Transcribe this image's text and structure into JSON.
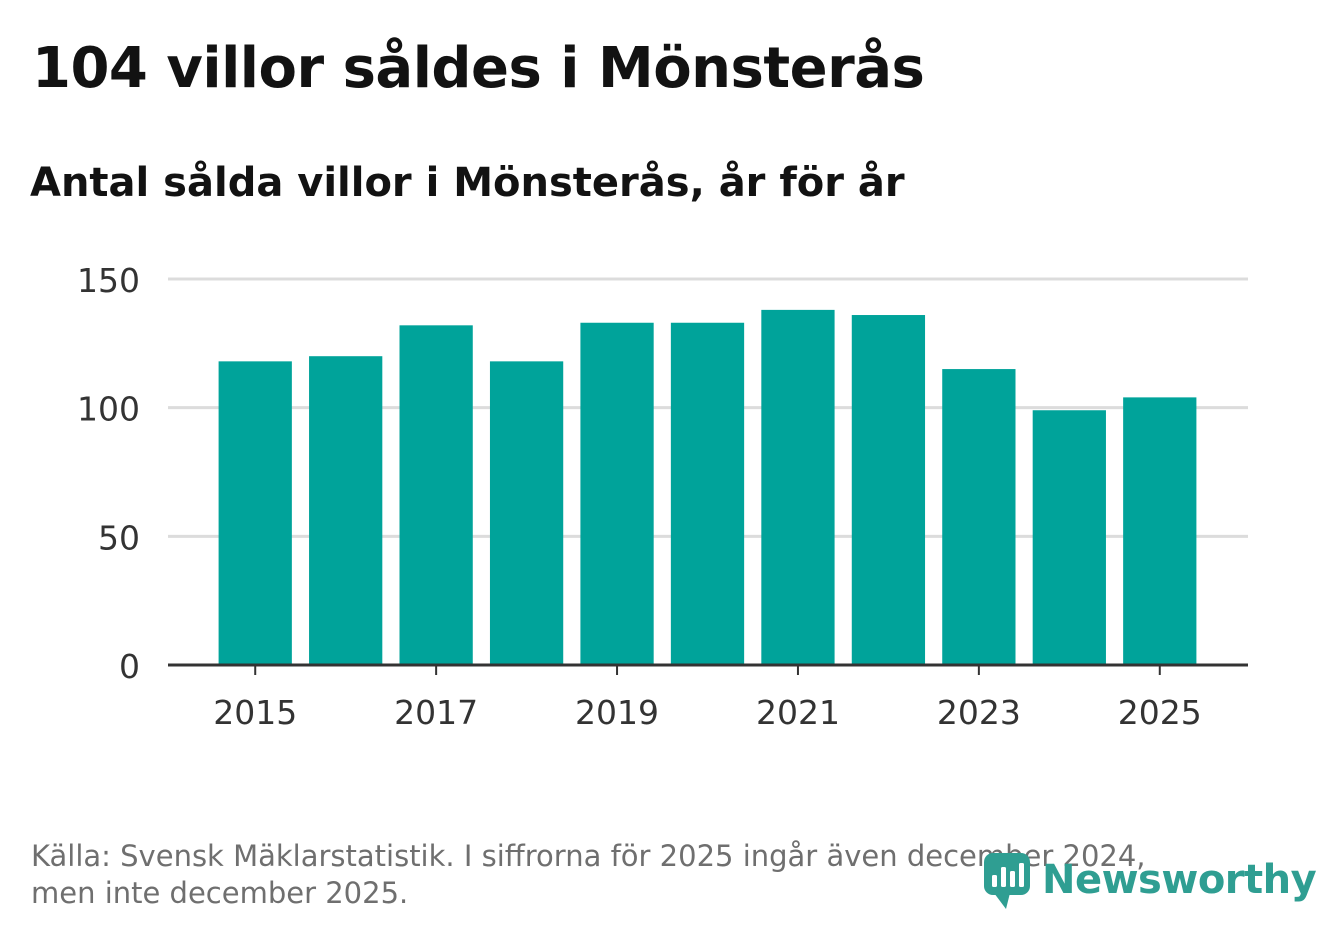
{
  "title": "104 villor såldes i Mönsterås",
  "subtitle": "Antal sålda villor i Mönsterås, år för år",
  "footer": {
    "source_line1": "Källa: Svensk Mäklarstatistik. I siffrorna för 2025 ingår även december 2024,",
    "source_line2": "men inte december 2025."
  },
  "logo": {
    "text": "Newsworthy",
    "icon": "newsworthy-chart-bubble-icon",
    "color": "#2f9e92"
  },
  "chart_data": {
    "type": "bar",
    "title": "104 villor såldes i Mönsterås",
    "subtitle": "Antal sålda villor i Mönsterås, år för år",
    "categories": [
      "2015",
      "2016",
      "2017",
      "2018",
      "2019",
      "2020",
      "2021",
      "2022",
      "2023",
      "2024",
      "2025"
    ],
    "values": [
      118,
      120,
      132,
      118,
      133,
      133,
      138,
      136,
      115,
      99,
      104
    ],
    "xtick_labels": [
      "2015",
      "2017",
      "2019",
      "2021",
      "2023",
      "2025"
    ],
    "yticks": [
      0,
      50,
      100,
      150
    ],
    "ylim": [
      0,
      150
    ],
    "xlabel": "",
    "ylabel": "",
    "grid": true,
    "bar_color": "#00a39a",
    "grid_color": "#dcdcdc",
    "axis_color": "#333333"
  }
}
